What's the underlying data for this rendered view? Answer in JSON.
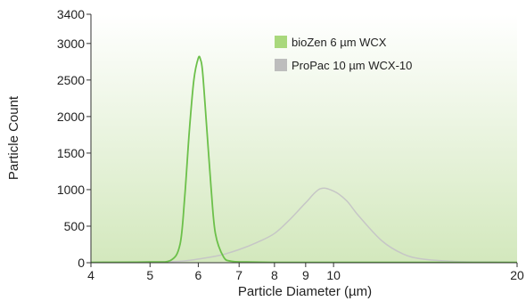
{
  "chart_data": {
    "type": "line",
    "title": "",
    "xlabel": "Particle Diameter (µm)",
    "ylabel": "Particle Count",
    "x_scale": "log",
    "xlim": [
      4,
      20
    ],
    "ylim": [
      0,
      3400
    ],
    "x_ticks": [
      4,
      5,
      6,
      7,
      8,
      9,
      10,
      20
    ],
    "x_tick_labels": [
      "4",
      "5",
      "6",
      "7",
      "8",
      "9",
      "10",
      "20"
    ],
    "y_ticks": [
      0,
      500,
      1000,
      1500,
      2000,
      2500,
      3000,
      3400
    ],
    "y_tick_labels": [
      "0",
      "500",
      "1000",
      "1500",
      "2000",
      "2500",
      "3000",
      "3400"
    ],
    "grid": false,
    "legend_position": "top-right",
    "background": "gradient-green",
    "series": [
      {
        "name": "bioZen 6 µm WCX",
        "color": "#6cc04a",
        "legend_color": "#a9d87c",
        "x": [
          4,
          5,
          5.4,
          5.6,
          5.7,
          5.8,
          5.9,
          6.0,
          6.05,
          6.1,
          6.2,
          6.3,
          6.4,
          6.6,
          6.8,
          7.2,
          8,
          10,
          14,
          20
        ],
        "y": [
          5,
          10,
          30,
          250,
          900,
          1800,
          2500,
          2800,
          2780,
          2600,
          1800,
          1000,
          400,
          80,
          20,
          10,
          5,
          5,
          5,
          5
        ]
      },
      {
        "name": "ProPac 10 µm WCX-10",
        "color": "#c6c6c6",
        "legend_color": "#bdbdbd",
        "x": [
          4,
          5,
          5.6,
          6.0,
          6.5,
          7.0,
          7.5,
          8.0,
          8.5,
          9.0,
          9.5,
          10.0,
          10.5,
          11,
          12,
          13,
          14,
          16,
          18,
          20
        ],
        "y": [
          5,
          10,
          20,
          50,
          100,
          180,
          280,
          400,
          600,
          820,
          1010,
          980,
          850,
          640,
          300,
          120,
          50,
          15,
          10,
          5
        ]
      }
    ]
  }
}
